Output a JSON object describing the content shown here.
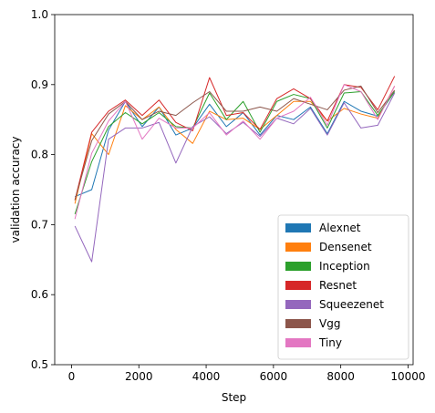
{
  "chart_data": {
    "type": "line",
    "xlabel": "Step",
    "ylabel": "validation accuracy",
    "xlim": [
      -500,
      10150
    ],
    "ylim": [
      0.5,
      1.0
    ],
    "xticks": [
      0,
      2000,
      4000,
      6000,
      8000,
      10000
    ],
    "xtick_labels": [
      "0",
      "2000",
      "4000",
      "6000",
      "8000",
      "10000"
    ],
    "yticks": [
      0.5,
      0.6,
      0.7,
      0.8,
      0.9,
      1.0
    ],
    "ytick_labels": [
      "0.5",
      "0.6",
      "0.7",
      "0.8",
      "0.9",
      "1.0"
    ],
    "grid": false,
    "legend_position": "lower-right",
    "x": [
      100,
      600,
      1100,
      1600,
      2100,
      2600,
      3100,
      3600,
      4100,
      4600,
      5100,
      5600,
      6100,
      6600,
      7100,
      7600,
      8100,
      8600,
      9100,
      9600
    ],
    "series": [
      {
        "name": "Alexnet",
        "color": "#1f77b4",
        "values": [
          0.74,
          0.75,
          0.835,
          0.876,
          0.84,
          0.868,
          0.828,
          0.838,
          0.872,
          0.84,
          0.86,
          0.828,
          0.856,
          0.85,
          0.868,
          0.83,
          0.876,
          0.862,
          0.855,
          0.89
        ]
      },
      {
        "name": "Densenet",
        "color": "#ff7f0e",
        "values": [
          0.73,
          0.83,
          0.8,
          0.87,
          0.85,
          0.868,
          0.836,
          0.816,
          0.862,
          0.85,
          0.852,
          0.836,
          0.856,
          0.876,
          0.876,
          0.848,
          0.866,
          0.858,
          0.852,
          0.898
        ]
      },
      {
        "name": "Inception",
        "color": "#2ca02c",
        "values": [
          0.715,
          0.79,
          0.84,
          0.86,
          0.844,
          0.86,
          0.84,
          0.838,
          0.888,
          0.85,
          0.876,
          0.832,
          0.876,
          0.886,
          0.88,
          0.838,
          0.888,
          0.89,
          0.856,
          0.89
        ]
      },
      {
        "name": "Resnet",
        "color": "#d62728",
        "values": [
          0.735,
          0.832,
          0.862,
          0.878,
          0.856,
          0.878,
          0.846,
          0.834,
          0.91,
          0.856,
          0.86,
          0.836,
          0.88,
          0.894,
          0.88,
          0.848,
          0.9,
          0.896,
          0.864,
          0.912
        ]
      },
      {
        "name": "Squeezenet",
        "color": "#9467bd",
        "values": [
          0.698,
          0.647,
          0.822,
          0.838,
          0.838,
          0.846,
          0.788,
          0.84,
          0.854,
          0.83,
          0.846,
          0.826,
          0.852,
          0.844,
          0.866,
          0.828,
          0.874,
          0.838,
          0.842,
          0.888
        ]
      },
      {
        "name": "Vgg",
        "color": "#8c564b",
        "values": [
          0.735,
          0.82,
          0.858,
          0.876,
          0.85,
          0.862,
          0.856,
          0.874,
          0.89,
          0.862,
          0.862,
          0.868,
          0.862,
          0.88,
          0.872,
          0.864,
          0.892,
          0.898,
          0.86,
          0.892
        ]
      },
      {
        "name": "Tiny",
        "color": "#e377c2",
        "values": [
          0.708,
          0.802,
          0.848,
          0.876,
          0.822,
          0.852,
          0.838,
          0.838,
          0.86,
          0.828,
          0.848,
          0.822,
          0.852,
          0.862,
          0.882,
          0.842,
          0.9,
          0.89,
          0.85,
          0.898
        ]
      }
    ]
  }
}
